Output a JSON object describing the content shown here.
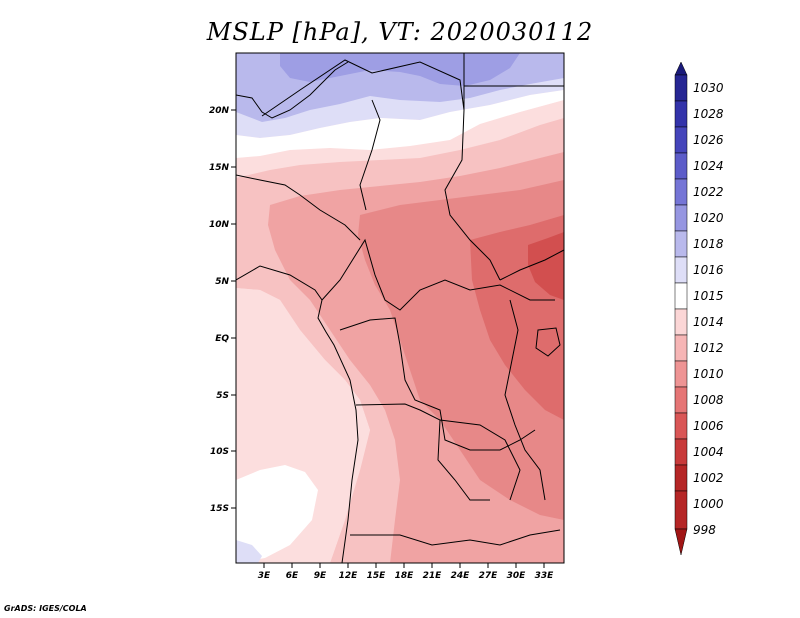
{
  "title": "MSLP [hPa], VT: 2020030112",
  "credit": "GrADS: IGES/COLA",
  "map": {
    "lat_labels": [
      "20N",
      "15N",
      "10N",
      "5N",
      "EQ",
      "5S",
      "10S",
      "15S"
    ],
    "lon_labels": [
      "3E",
      "6E",
      "9E",
      "12E",
      "15E",
      "18E",
      "21E",
      "24E",
      "27E",
      "30E",
      "33E"
    ]
  },
  "colorbar": {
    "levels": [
      "1030",
      "1028",
      "1026",
      "1024",
      "1022",
      "1020",
      "1018",
      "1016",
      "1015",
      "1014",
      "1012",
      "1010",
      "1008",
      "1006",
      "1004",
      "1002",
      "1000",
      "998"
    ],
    "colors": [
      "#1a1a7a",
      "#262693",
      "#3333aa",
      "#4545bb",
      "#5c5cc9",
      "#7575d6",
      "#9696e1",
      "#b9b9ec",
      "#dedef7",
      "#ffffff",
      "#fbd6d6",
      "#f6b5b5",
      "#ee9494",
      "#e57575",
      "#d95656",
      "#c83a3a",
      "#b52626",
      "#a11515"
    ]
  },
  "field_colors": {
    "hp_dark": "#9e9ee4",
    "hp_mid": "#b9b9ec",
    "hp_light": "#dedef7",
    "neutral": "#ffffff",
    "p1012": "#fcdede",
    "p1010": "#f7c2c2",
    "p1008": "#f0a3a3",
    "p1006": "#e78888",
    "p1004": "#de6c6c",
    "p1002": "#d24f4f"
  }
}
